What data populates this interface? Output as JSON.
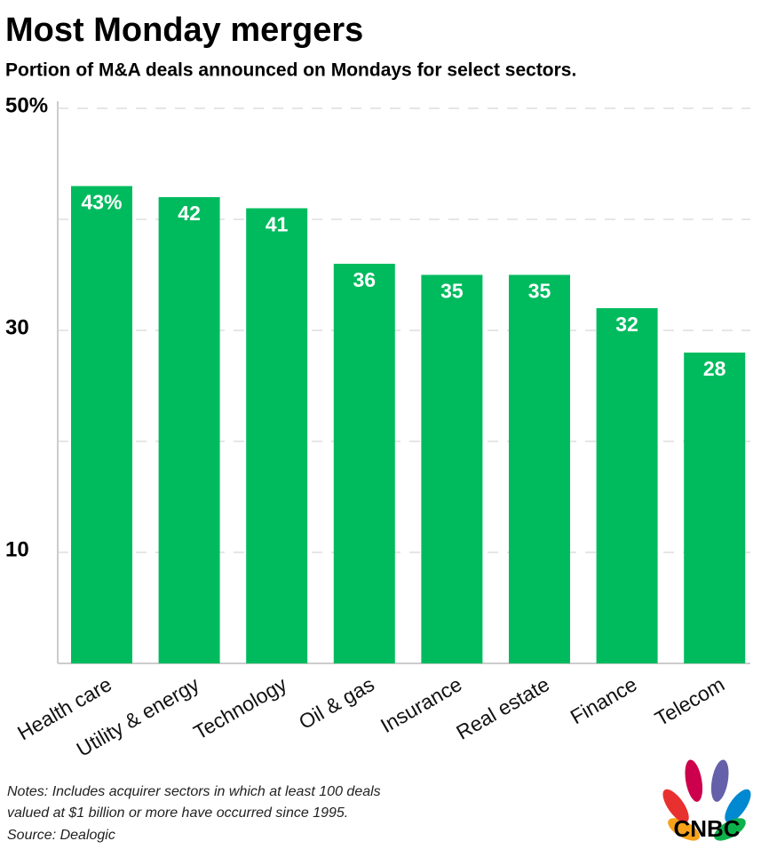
{
  "chart_data": {
    "type": "bar",
    "title": "Most Monday mergers",
    "subtitle": "Portion of M&A deals announced on Mondays for select sectors.",
    "categories": [
      "Health care",
      "Utility & energy",
      "Technology",
      "Oil & gas",
      "Insurance",
      "Real estate",
      "Finance",
      "Telecom"
    ],
    "values": [
      43,
      42,
      41,
      36,
      35,
      35,
      32,
      28
    ],
    "value_labels": [
      "43%",
      "42",
      "41",
      "36",
      "35",
      "35",
      "32",
      "28"
    ],
    "color": "#00bb5e",
    "ylim": [
      0,
      50
    ],
    "yticks": [
      10,
      {
        "value": 20,
        "label": null
      },
      30,
      {
        "value": 40,
        "label": null
      },
      {
        "value": 50,
        "label": "50%"
      }
    ],
    "grid": true,
    "notes": [
      "Notes: Includes acquirer sectors in which at least 100 deals",
      "valued at $1 billion or more have occurred since 1995."
    ],
    "source": "Source: Dealogic",
    "logo": "CNBC"
  }
}
